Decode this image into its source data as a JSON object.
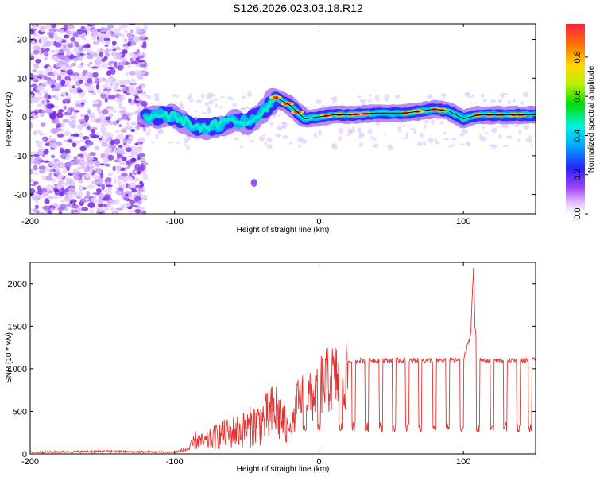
{
  "title": "S126.2026.023.03.18.R12",
  "chart_data": [
    {
      "type": "heatmap",
      "name": "spectrogram",
      "xlabel": "Height of straight line (km)",
      "ylabel": "Frequency (Hz)",
      "xlim": [
        -200,
        150
      ],
      "ylim": [
        -25,
        24
      ],
      "xticks": [
        -200,
        -100,
        0,
        100
      ],
      "yticks": [
        -20,
        -10,
        0,
        10,
        20
      ],
      "colorbar": {
        "label": "Normalized spectral amplitude",
        "range": [
          0,
          0.97
        ],
        "ticks": [
          0.0,
          0.2,
          0.4,
          0.6,
          0.8
        ]
      },
      "signal_track": {
        "height_km": [
          -120,
          -110,
          -100,
          -90,
          -80,
          -70,
          -60,
          -50,
          -40,
          -30,
          -20,
          -10,
          0,
          10,
          20,
          40,
          60,
          80,
          90,
          100,
          110,
          130,
          150
        ],
        "frequency_hz": [
          0,
          0.5,
          0,
          -1.5,
          -3,
          -2,
          -1,
          -1.5,
          1,
          5,
          3,
          -0.5,
          0,
          0.5,
          0.5,
          1,
          1,
          2,
          1.5,
          -0.5,
          0.5,
          0.5,
          0.5
        ]
      },
      "noise_region_km": [
        -200,
        -120
      ]
    },
    {
      "type": "line",
      "name": "snr",
      "xlabel": "Height of straight line (km)",
      "ylabel": "SNR (10 * v/v)",
      "xlim": [
        -200,
        150
      ],
      "ylim": [
        0,
        2250
      ],
      "xticks": [
        -200,
        -100,
        0,
        100
      ],
      "yticks": [
        0,
        500,
        1000,
        1500,
        2000
      ],
      "series": [
        {
          "name": "SNR",
          "color": "#e8312f",
          "x": [
            -200,
            -150,
            -100,
            -95,
            -90,
            -85,
            -80,
            -70,
            -60,
            -50,
            -40,
            -35,
            -30,
            -25,
            -20,
            -15,
            -10,
            -5,
            0,
            5,
            10,
            15,
            20,
            30,
            40,
            50,
            60,
            70,
            80,
            90,
            100,
            105,
            107,
            108,
            110,
            120,
            130,
            140,
            150
          ],
          "y": [
            20,
            30,
            20,
            40,
            60,
            200,
            150,
            250,
            300,
            350,
            450,
            500,
            600,
            450,
            200,
            700,
            850,
            750,
            950,
            1000,
            1050,
            1050,
            1080,
            1100,
            1100,
            1100,
            1100,
            1100,
            1100,
            1100,
            1100,
            1400,
            2200,
            1500,
            1100,
            1100,
            1100,
            1100,
            1100
          ]
        }
      ],
      "dropouts_km": [
        -20,
        -10,
        0,
        15,
        24,
        33,
        43,
        52,
        61,
        70,
        80,
        89,
        99,
        110,
        120,
        129,
        138,
        146
      ]
    }
  ]
}
